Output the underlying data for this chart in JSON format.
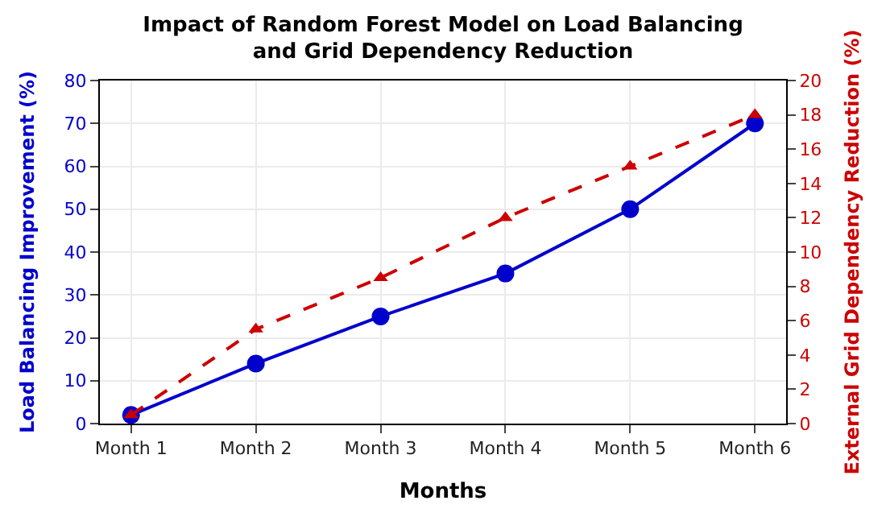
{
  "chart_data": {
    "type": "line",
    "title": "Impact of Random Forest Model on Load Balancing\nand Grid Dependency Reduction",
    "xlabel": "Months",
    "ylabel": "Load Balancing Improvement (%)",
    "y2label": "External Grid Dependency Reduction (%)",
    "categories": [
      "Month 1",
      "Month 2",
      "Month 3",
      "Month 4",
      "Month 5",
      "Month 6"
    ],
    "series": [
      {
        "color": "#0000cc",
        "values": [
          2,
          14,
          25,
          35,
          50,
          70
        ],
        "marker": "circle",
        "line_style": "solid"
      },
      {
        "color": "#cc0000",
        "values": [
          0.5,
          5.5,
          8.5,
          12,
          15,
          18
        ],
        "marker": "triangle",
        "line_style": "dashed",
        "axis": "y2"
      }
    ],
    "ylim": [
      0,
      80
    ],
    "yticks": [
      0,
      10,
      20,
      30,
      40,
      50,
      60,
      70,
      80
    ],
    "y2lim": [
      0,
      20
    ],
    "y2ticks": [
      0,
      2,
      4,
      6,
      8,
      10,
      12,
      14,
      16,
      18,
      20
    ],
    "grid": true,
    "legend": false
  }
}
